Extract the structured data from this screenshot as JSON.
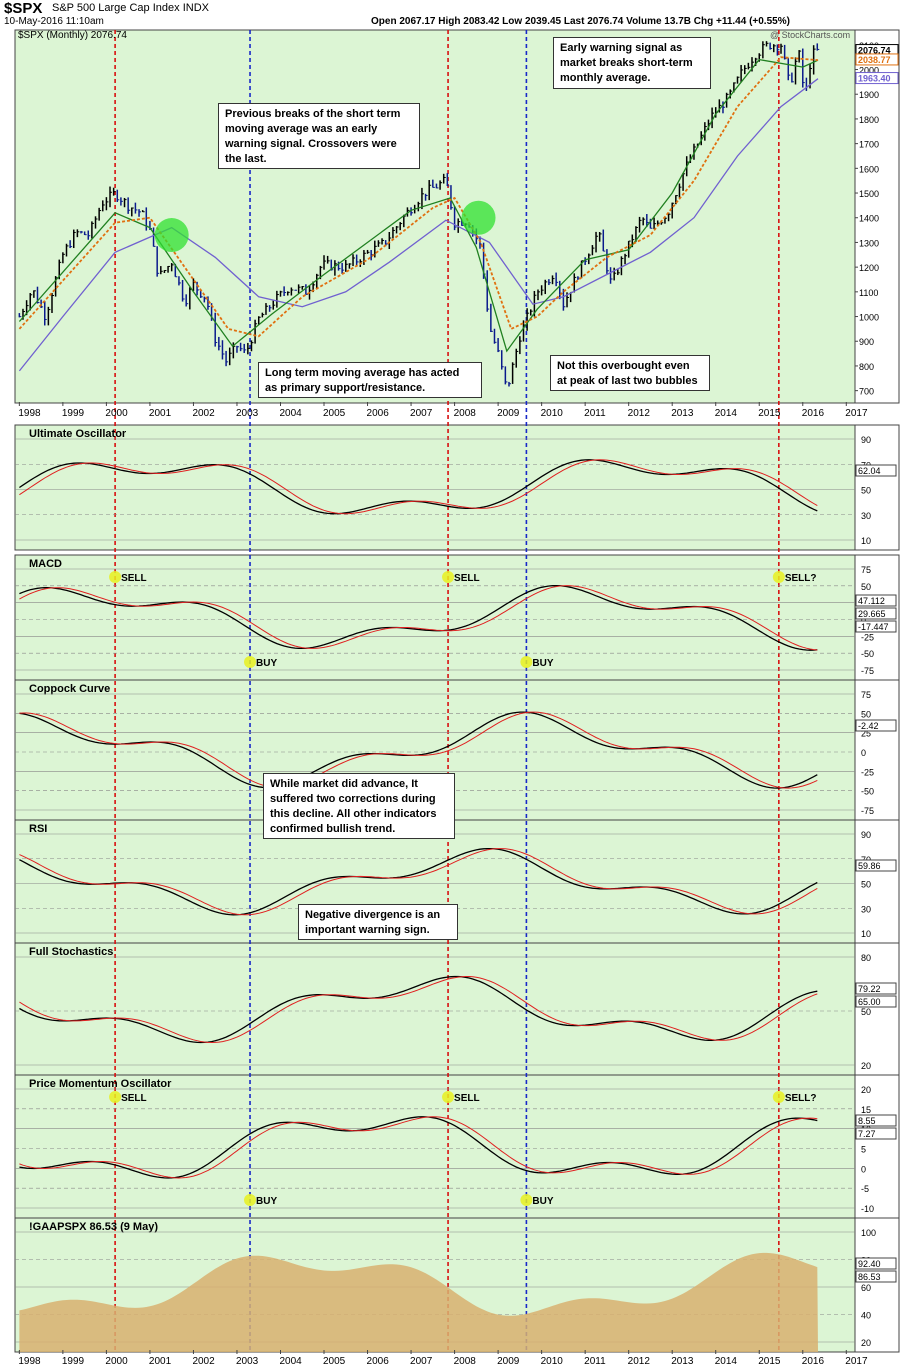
{
  "header": {
    "symbol": "$SPX",
    "name": "S&P 500 Large Cap Index",
    "exchange": "INDX",
    "date": "10-May-2016 11:10am",
    "quote": "Open 2067.17  High 2083.42  Low 2039.45  Last 2076.74  Volume 13.7B  Chg +11.44 (+0.55%)",
    "watermark": "@ StockCharts.com",
    "legend": "$SPX (Monthly) 2076.74",
    "last_values": [
      "2076.74",
      "2038.77",
      "1963.40"
    ]
  },
  "colors": {
    "panel_bg": "#dcf5d4",
    "price_up": "#000000",
    "price_down": "#0a1a8c",
    "ma_short": "#e07010",
    "ma_mid": "#208020",
    "ma_long": "#7060d0",
    "signal_red": "#d81010",
    "signal_blue": "#1828c8",
    "highlight_yellow": "#e8f020",
    "highlight_green": "#30e030",
    "histogram": "#2c8cc0",
    "area": "#d8b070"
  },
  "callouts": [
    {
      "text": "Previous breaks of the short term\nmoving average was an early\nwarning signal. Crossovers were\nthe last."
    },
    {
      "text": "Early warning signal as\nmarket breaks short-term\nmonthly average."
    },
    {
      "text": "Long term moving average has acted\nas primary support/resistance."
    },
    {
      "text": "Not this overbought even\nat peak of last two bubbles"
    },
    {
      "text": "While market did advance, It\nsuffered two corrections during\nthis decline. All other indicators\nconfirmed bullish trend."
    },
    {
      "text": "Negative divergence is an\nimportant warning sign."
    }
  ],
  "chart_data": {
    "type": "line",
    "x_axis_years": [
      "1998",
      "1999",
      "2000",
      "2001",
      "2002",
      "2003",
      "2004",
      "2005",
      "2006",
      "2007",
      "2008",
      "2009",
      "2010",
      "2011",
      "2012",
      "2013",
      "2014",
      "2015",
      "2016",
      "2017"
    ],
    "signal_lines": [
      {
        "color": "red",
        "year": 2000.2
      },
      {
        "color": "blue",
        "year": 2003.3
      },
      {
        "color": "red",
        "year": 2007.85
      },
      {
        "color": "blue",
        "year": 2009.65
      },
      {
        "color": "red",
        "year": 2015.45
      }
    ],
    "price_panel": {
      "title": "$SPX (Monthly) 2076.74",
      "y_ticks": [
        700,
        800,
        900,
        1000,
        1100,
        1200,
        1300,
        1400,
        1500,
        1600,
        1700,
        1800,
        1900,
        2000,
        2100
      ],
      "ylim": [
        650,
        2160
      ],
      "series_price": [
        [
          1998,
          1000
        ],
        [
          1998.3,
          1110
        ],
        [
          1998.6,
          1000
        ],
        [
          1998.8,
          1130
        ],
        [
          1999,
          1250
        ],
        [
          1999.3,
          1340
        ],
        [
          1999.6,
          1330
        ],
        [
          1999.9,
          1460
        ],
        [
          2000.2,
          1500
        ],
        [
          2000.5,
          1450
        ],
        [
          2000.8,
          1420
        ],
        [
          2001,
          1350
        ],
        [
          2001.2,
          1160
        ],
        [
          2001.5,
          1220
        ],
        [
          2001.8,
          1060
        ],
        [
          2002,
          1130
        ],
        [
          2002.3,
          1070
        ],
        [
          2002.5,
          910
        ],
        [
          2002.75,
          820
        ],
        [
          2003,
          880
        ],
        [
          2003.2,
          850
        ],
        [
          2003.5,
          990
        ],
        [
          2003.9,
          1070
        ],
        [
          2004.2,
          1120
        ],
        [
          2004.6,
          1100
        ],
        [
          2004.95,
          1210
        ],
        [
          2005.5,
          1200
        ],
        [
          2005.95,
          1250
        ],
        [
          2006.4,
          1300
        ],
        [
          2006.9,
          1420
        ],
        [
          2007.3,
          1500
        ],
        [
          2007.8,
          1550
        ],
        [
          2008,
          1380
        ],
        [
          2008.3,
          1390
        ],
        [
          2008.6,
          1280
        ],
        [
          2008.8,
          960
        ],
        [
          2009,
          850
        ],
        [
          2009.2,
          700
        ],
        [
          2009.5,
          920
        ],
        [
          2009.9,
          1100
        ],
        [
          2010.3,
          1180
        ],
        [
          2010.5,
          1050
        ],
        [
          2010.9,
          1200
        ],
        [
          2011.3,
          1340
        ],
        [
          2011.6,
          1130
        ],
        [
          2011.9,
          1250
        ],
        [
          2012.3,
          1400
        ],
        [
          2012.5,
          1350
        ],
        [
          2012.9,
          1420
        ],
        [
          2013.3,
          1600
        ],
        [
          2013.9,
          1810
        ],
        [
          2014.3,
          1890
        ],
        [
          2014.6,
          1990
        ],
        [
          2014.9,
          2060
        ],
        [
          2015.2,
          2100
        ],
        [
          2015.5,
          2100
        ],
        [
          2015.7,
          1930
        ],
        [
          2015.9,
          2080
        ],
        [
          2016.05,
          1880
        ],
        [
          2016.2,
          2060
        ],
        [
          2016.35,
          2076
        ]
      ],
      "series_ma_short": [
        [
          1998,
          950
        ],
        [
          2000.2,
          1380
        ],
        [
          2001,
          1400
        ],
        [
          2002,
          1150
        ],
        [
          2002.8,
          950
        ],
        [
          2003.5,
          920
        ],
        [
          2004.5,
          1080
        ],
        [
          2006,
          1230
        ],
        [
          2007.5,
          1440
        ],
        [
          2008,
          1480
        ],
        [
          2008.6,
          1300
        ],
        [
          2009.3,
          950
        ],
        [
          2009.9,
          1000
        ],
        [
          2010.5,
          1100
        ],
        [
          2011.5,
          1240
        ],
        [
          2012.5,
          1330
        ],
        [
          2013.5,
          1550
        ],
        [
          2014.5,
          1850
        ],
        [
          2015.5,
          2050
        ],
        [
          2016.35,
          2038
        ]
      ],
      "series_ma_mid": [
        [
          1998,
          980
        ],
        [
          2000.2,
          1420
        ],
        [
          2001,
          1360
        ],
        [
          2002,
          1100
        ],
        [
          2002.9,
          880
        ],
        [
          2003.8,
          1010
        ],
        [
          2005,
          1170
        ],
        [
          2007,
          1430
        ],
        [
          2007.9,
          1480
        ],
        [
          2008.5,
          1280
        ],
        [
          2009.2,
          860
        ],
        [
          2009.9,
          1030
        ],
        [
          2011,
          1230
        ],
        [
          2012,
          1270
        ],
        [
          2013,
          1500
        ],
        [
          2014,
          1820
        ],
        [
          2015,
          2040
        ],
        [
          2016,
          2010
        ],
        [
          2016.35,
          2038
        ]
      ],
      "series_ma_long": [
        [
          1998,
          780
        ],
        [
          1999,
          1000
        ],
        [
          2000.2,
          1260
        ],
        [
          2001.5,
          1360
        ],
        [
          2002.5,
          1240
        ],
        [
          2003.5,
          1080
        ],
        [
          2004.5,
          1040
        ],
        [
          2005.5,
          1100
        ],
        [
          2006.5,
          1220
        ],
        [
          2007.8,
          1390
        ],
        [
          2008.8,
          1300
        ],
        [
          2009.8,
          1050
        ],
        [
          2010.5,
          1080
        ],
        [
          2011.5,
          1170
        ],
        [
          2012.5,
          1260
        ],
        [
          2013.5,
          1400
        ],
        [
          2014.5,
          1650
        ],
        [
          2015.5,
          1850
        ],
        [
          2016.35,
          1963
        ]
      ]
    },
    "indicators": [
      {
        "title": "Ultimate Oscillator",
        "ticks": [
          "90",
          "70",
          "50",
          "30",
          "10"
        ],
        "last": "62.04"
      },
      {
        "title": "MACD",
        "ticks": [
          "75",
          "50",
          "25",
          "0",
          "-25",
          "-50",
          "-75"
        ],
        "last": [
          "47.112",
          "29.665",
          "-17.447"
        ],
        "labels": [
          "SELL",
          "BUY",
          "SELL",
          "BUY",
          "SELL?"
        ]
      },
      {
        "title": "Coppock Curve",
        "ticks": [
          "75",
          "50",
          "25",
          "0",
          "-25",
          "-50",
          "-75"
        ],
        "last": "-2.42"
      },
      {
        "title": "RSI",
        "ticks": [
          "90",
          "70",
          "50",
          "30",
          "10"
        ],
        "last": "59.86"
      },
      {
        "title": "Full Stochastics",
        "ticks": [
          "80",
          "50",
          "20"
        ],
        "last": [
          "79.22",
          "65.00"
        ]
      },
      {
        "title": "Price Momentum Oscillator",
        "ticks": [
          "20",
          "15",
          "10",
          "5",
          "0",
          "-5",
          "-10"
        ],
        "last": [
          "8.55",
          "7.27"
        ],
        "labels": [
          "SELL",
          "BUY",
          "SELL",
          "BUY",
          "SELL?"
        ]
      },
      {
        "title": "!GAAPSPX 86.53 (9 May)",
        "ticks": [
          "100",
          "80",
          "60",
          "40",
          "20"
        ],
        "last": [
          "92.40",
          "86.53"
        ]
      }
    ]
  }
}
